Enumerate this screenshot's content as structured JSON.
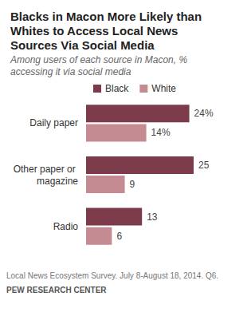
{
  "chart_data": {
    "type": "bar",
    "title": "Blacks in Macon More Likely than Whites to Access Local News Sources Via Social Media",
    "subtitle": "Among users of each source in Macon, % accessing it via social media",
    "notes": [
      "Local News Ecosystem Survey. July 8-August 18, 2014. Q6.",
      "PEW RESEARCH CENTER"
    ],
    "categories": [
      "Daily paper",
      "Other paper or magazine",
      "Radio"
    ],
    "series": [
      {
        "name": "Black",
        "color": "#7b3b4b",
        "values": [
          24,
          25,
          13
        ],
        "value_labels": [
          "24%",
          "25",
          "13"
        ]
      },
      {
        "name": "White",
        "color": "#c58b93",
        "values": [
          14,
          9,
          6
        ],
        "value_labels": [
          "14%",
          "9",
          "6"
        ]
      }
    ],
    "xlim": [
      0,
      30
    ],
    "orientation": "horizontal",
    "data_labels": true,
    "tick_labels": "y",
    "grid": false,
    "legend": "top"
  }
}
